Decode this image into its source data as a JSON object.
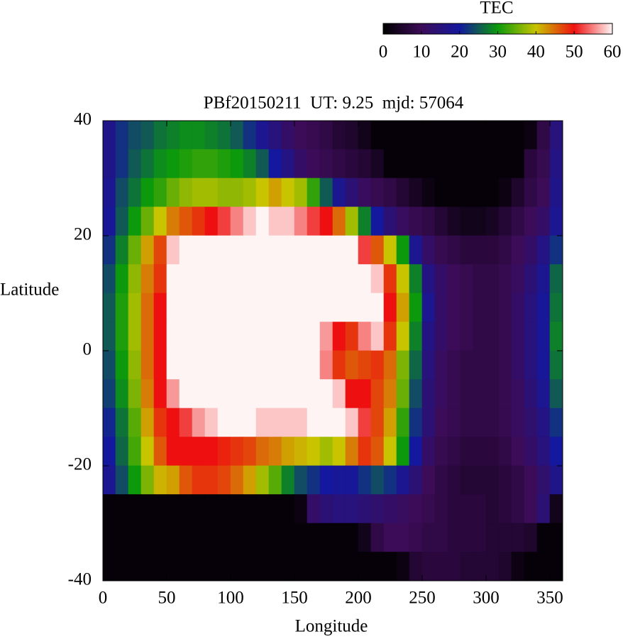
{
  "chart_data": {
    "type": "heatmap",
    "title": "PBf20150211  UT: 9.25  mjd: 57064",
    "xlabel": "Longitude",
    "ylabel": "Latitude",
    "x": [
      5,
      15,
      25,
      35,
      45,
      55,
      65,
      75,
      85,
      95,
      105,
      115,
      125,
      135,
      145,
      155,
      165,
      175,
      185,
      195,
      205,
      215,
      225,
      235,
      245,
      255,
      265,
      275,
      285,
      295,
      305,
      315,
      325,
      335,
      345,
      355
    ],
    "y": [
      37.5,
      32.5,
      27.5,
      22.5,
      17.5,
      12.5,
      7.5,
      2.5,
      -2.5,
      -7.5,
      -12.5,
      -17.5,
      -22.5,
      -27.5,
      -32.5,
      -37.5
    ],
    "values": [
      [
        17,
        22,
        24,
        25,
        27,
        28,
        29,
        29,
        28,
        27,
        25,
        22,
        18,
        15,
        12,
        10,
        9,
        8,
        6,
        5,
        3,
        1,
        1,
        1,
        1,
        1,
        1,
        1,
        1,
        1,
        1,
        1,
        1,
        2,
        8,
        15
      ],
      [
        17,
        22,
        25,
        27,
        29,
        30,
        31,
        32,
        32,
        31,
        30,
        28,
        25,
        20,
        16,
        12,
        10,
        9,
        8,
        7,
        6,
        4,
        1,
        1,
        1,
        1,
        1,
        1,
        1,
        1,
        1,
        1,
        1,
        7,
        9,
        16
      ],
      [
        18,
        24,
        27,
        30,
        32,
        35,
        37,
        38,
        38,
        37,
        37,
        38,
        40,
        42,
        40,
        38,
        32,
        25,
        18,
        14,
        11,
        9,
        8,
        6,
        4,
        2,
        1,
        1,
        1,
        1,
        1,
        2,
        5,
        8,
        10,
        17
      ],
      [
        19,
        25,
        30,
        35,
        40,
        44,
        46,
        48,
        50,
        52,
        55,
        58,
        60,
        58,
        58,
        55,
        52,
        50,
        45,
        38,
        28,
        20,
        14,
        11,
        9,
        8,
        6,
        4,
        3,
        3,
        4,
        6,
        8,
        10,
        12,
        18
      ],
      [
        22,
        28,
        35,
        42,
        47,
        58,
        60,
        60,
        60,
        60,
        60,
        60,
        60,
        60,
        60,
        60,
        60,
        60,
        60,
        60,
        52,
        46,
        40,
        30,
        18,
        12,
        9,
        8,
        7,
        7,
        7,
        8,
        10,
        12,
        16,
        22
      ],
      [
        24,
        30,
        37,
        44,
        48,
        60,
        60,
        60,
        60,
        60,
        60,
        60,
        60,
        60,
        60,
        60,
        60,
        60,
        60,
        60,
        60,
        58,
        48,
        40,
        28,
        16,
        12,
        10,
        9,
        8,
        8,
        9,
        11,
        14,
        18,
        26
      ],
      [
        25,
        31,
        38,
        45,
        50,
        60,
        60,
        60,
        60,
        60,
        60,
        60,
        60,
        60,
        60,
        60,
        60,
        60,
        60,
        60,
        60,
        60,
        50,
        42,
        30,
        18,
        12,
        10,
        9,
        8,
        8,
        9,
        12,
        15,
        19,
        27
      ],
      [
        25,
        31,
        38,
        45,
        50,
        60,
        60,
        60,
        60,
        60,
        60,
        60,
        60,
        60,
        60,
        60,
        60,
        56,
        50,
        48,
        55,
        58,
        48,
        40,
        28,
        16,
        12,
        10,
        9,
        8,
        8,
        9,
        12,
        15,
        19,
        28
      ],
      [
        24,
        30,
        37,
        45,
        50,
        60,
        60,
        60,
        60,
        60,
        60,
        60,
        60,
        60,
        60,
        60,
        60,
        55,
        48,
        46,
        47,
        48,
        45,
        36,
        26,
        15,
        11,
        9,
        8,
        8,
        8,
        9,
        12,
        15,
        19,
        27
      ],
      [
        23,
        29,
        36,
        44,
        50,
        56,
        60,
        60,
        60,
        60,
        60,
        60,
        60,
        60,
        60,
        60,
        60,
        60,
        58,
        50,
        50,
        47,
        44,
        35,
        24,
        14,
        11,
        9,
        8,
        8,
        8,
        9,
        11,
        14,
        18,
        25
      ],
      [
        21,
        27,
        34,
        42,
        48,
        50,
        52,
        56,
        58,
        60,
        60,
        60,
        58,
        58,
        58,
        58,
        60,
        60,
        60,
        58,
        52,
        47,
        42,
        32,
        22,
        14,
        10,
        9,
        8,
        8,
        8,
        9,
        11,
        13,
        16,
        22
      ],
      [
        20,
        26,
        33,
        40,
        46,
        50,
        50,
        50,
        50,
        49,
        48,
        47,
        45,
        44,
        42,
        41,
        40,
        38,
        40,
        44,
        48,
        46,
        40,
        30,
        20,
        12,
        9,
        8,
        7,
        7,
        7,
        8,
        10,
        12,
        15,
        20
      ],
      [
        18,
        24,
        30,
        36,
        41,
        42,
        46,
        48,
        48,
        47,
        45,
        42,
        38,
        34,
        28,
        24,
        22,
        20,
        19,
        19,
        22,
        24,
        22,
        18,
        14,
        10,
        8,
        7,
        6,
        6,
        6,
        7,
        8,
        10,
        13,
        17
      ],
      [
        1,
        1,
        1,
        1,
        1,
        1,
        1,
        1,
        1,
        1,
        1,
        1,
        1,
        1,
        1,
        2,
        12,
        14,
        15,
        15,
        14,
        13,
        12,
        11,
        10,
        9,
        8,
        7,
        7,
        7,
        6,
        7,
        8,
        10,
        14,
        3
      ],
      [
        1,
        1,
        1,
        1,
        1,
        1,
        1,
        1,
        1,
        1,
        1,
        1,
        1,
        1,
        1,
        1,
        1,
        1,
        1,
        1,
        3,
        8,
        10,
        10,
        9,
        8,
        8,
        7,
        7,
        7,
        6,
        6,
        6,
        5,
        1,
        1
      ],
      [
        1,
        1,
        1,
        1,
        1,
        1,
        1,
        1,
        1,
        1,
        1,
        1,
        1,
        1,
        1,
        1,
        1,
        1,
        1,
        1,
        1,
        1,
        1,
        2,
        6,
        7,
        7,
        7,
        6,
        6,
        6,
        5,
        2,
        1,
        1,
        1
      ]
    ],
    "xlim": [
      0,
      360
    ],
    "xticks": [
      0,
      50,
      100,
      150,
      200,
      250,
      300,
      350
    ],
    "ylim": [
      -40,
      40
    ],
    "yticks": [
      -40,
      -20,
      0,
      20,
      40
    ],
    "colorbar": {
      "label": "TEC",
      "lim": [
        0,
        60
      ],
      "ticks": [
        0,
        10,
        20,
        30,
        40,
        50,
        60
      ],
      "colors": [
        "#000000",
        "#3c0c58",
        "#14189e",
        "#0c9a0c",
        "#c8c400",
        "#ee1010",
        "#fff4f4"
      ]
    }
  }
}
